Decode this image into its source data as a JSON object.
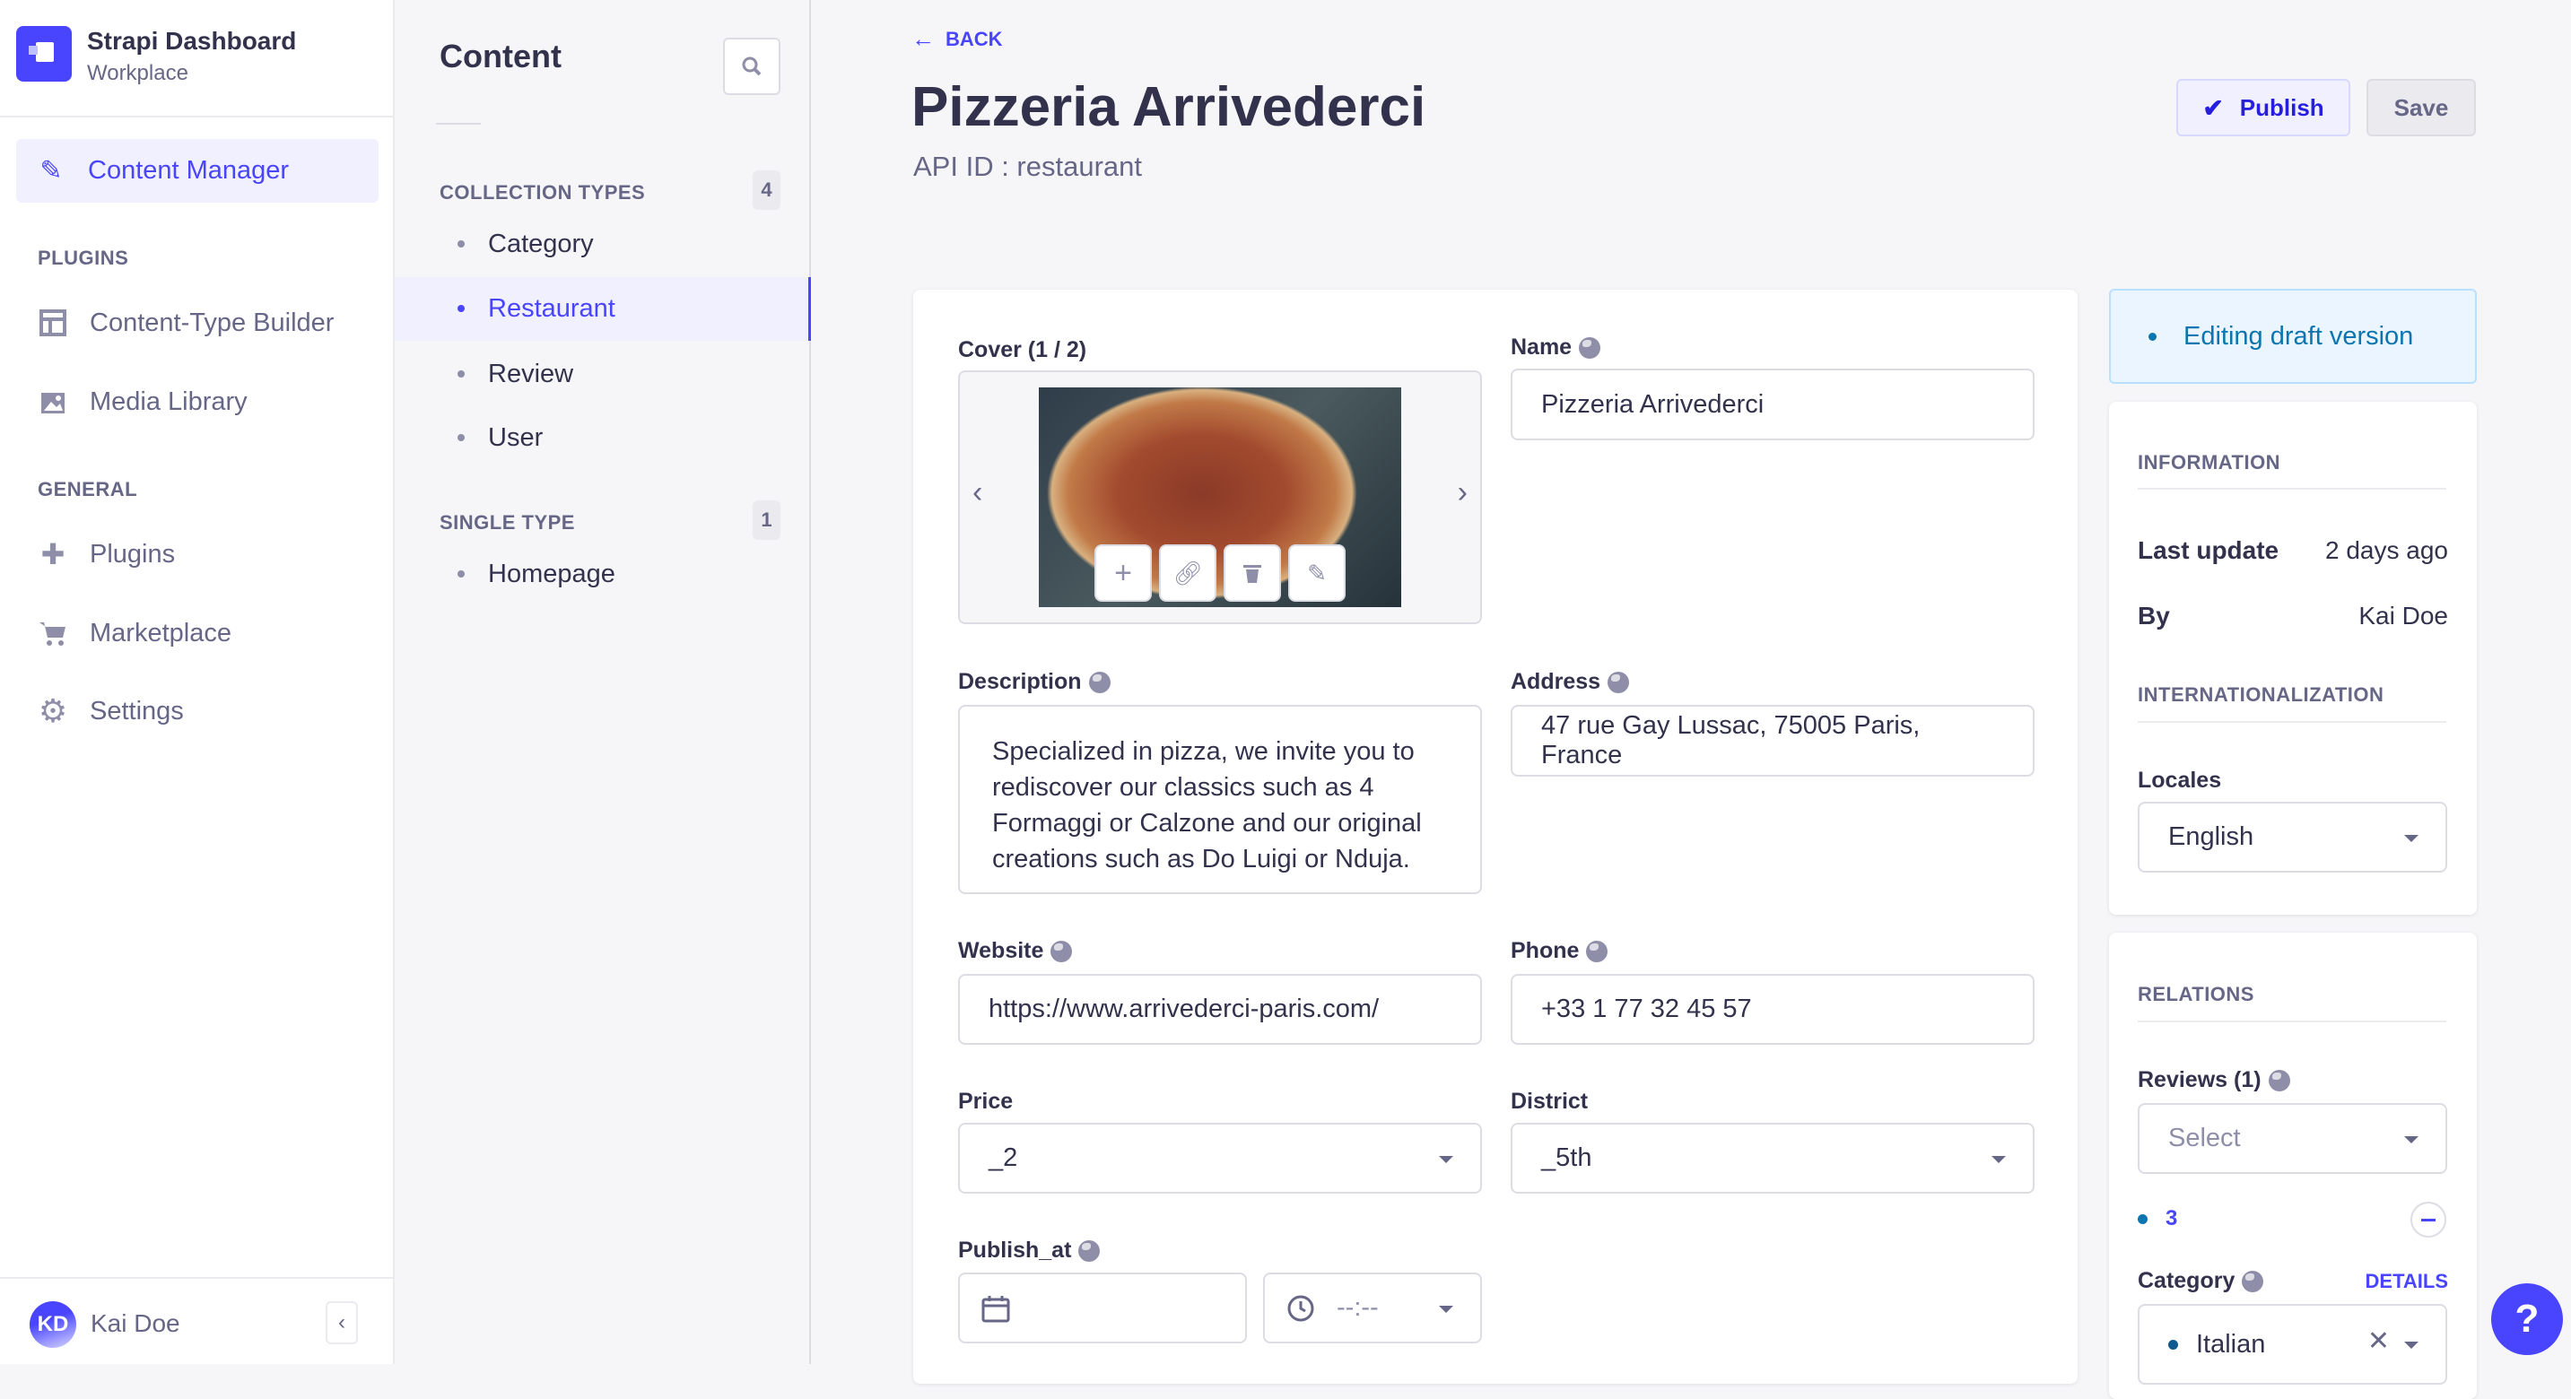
{
  "app": {
    "title": "Strapi Dashboard",
    "subtitle": "Workplace"
  },
  "nav": {
    "active": {
      "label": "Content Manager",
      "icon": "feather-icon"
    },
    "plugins_heading": "PLUGINS",
    "plugins": [
      {
        "label": "Content-Type Builder",
        "icon": "layout-icon"
      },
      {
        "label": "Media Library",
        "icon": "image-icon"
      }
    ],
    "general_heading": "GENERAL",
    "general": [
      {
        "label": "Plugins",
        "icon": "puzzle-icon"
      },
      {
        "label": "Marketplace",
        "icon": "cart-icon"
      },
      {
        "label": "Settings",
        "icon": "gear-icon"
      }
    ],
    "user": {
      "initials": "KD",
      "name": "Kai Doe"
    }
  },
  "subnav": {
    "title": "Content",
    "collection_heading": "COLLECTION TYPES",
    "collection_count": "4",
    "collection_items": [
      "Category",
      "Restaurant",
      "Review",
      "User"
    ],
    "single_heading": "SINGLE TYPE",
    "single_count": "1",
    "single_items": [
      "Homepage"
    ]
  },
  "header": {
    "back": "BACK",
    "title": "Pizzeria Arrivederci",
    "api_id": "API ID : restaurant",
    "publish": "Publish",
    "save": "Save"
  },
  "form": {
    "cover_label": "Cover (1 / 2)",
    "name_label": "Name",
    "name_value": "Pizzeria Arrivederci",
    "description_label": "Description",
    "description_value": "Specialized in pizza, we invite you to rediscover our classics such as 4 Formaggi or Calzone and our original creations such as Do Luigi or Nduja.",
    "address_label": "Address",
    "address_value": "47 rue Gay Lussac, 75005 Paris, France",
    "website_label": "Website",
    "website_value": "https://www.arrivederci-paris.com/",
    "phone_label": "Phone",
    "phone_value": "+33 1 77 32 45 57",
    "price_label": "Price",
    "price_value": "_2",
    "district_label": "District",
    "district_value": "_5th",
    "publish_at_label": "Publish_at",
    "time_placeholder": "--:--"
  },
  "sidebar": {
    "draft_status": "Editing draft version",
    "information_heading": "INFORMATION",
    "last_update_label": "Last update",
    "last_update_value": "2 days ago",
    "by_label": "By",
    "by_value": "Kai Doe",
    "i18n_heading": "INTERNATIONALIZATION",
    "locales_label": "Locales",
    "locales_value": "English",
    "relations_heading": "RELATIONS",
    "reviews_label": "Reviews (1)",
    "reviews_placeholder": "Select",
    "review_item": "3",
    "category_label": "Category",
    "details_link": "DETAILS",
    "category_value": "Italian"
  },
  "help": "?",
  "colors": {
    "primary": "#4945ff",
    "primary_light": "#f0f0ff",
    "draft": "#0c75af",
    "draft_bg": "#eaf5ff"
  }
}
